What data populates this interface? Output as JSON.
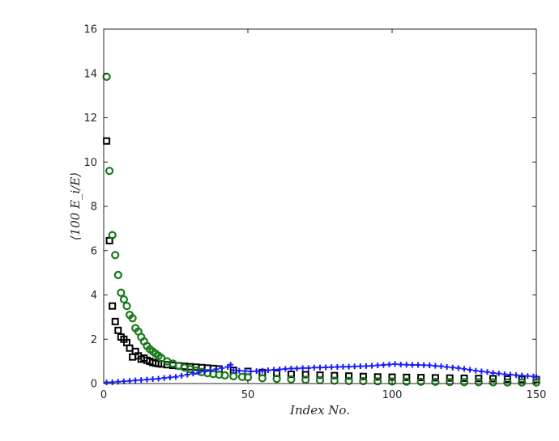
{
  "chart_data": {
    "type": "scatter",
    "title": "",
    "xlabel": "Index No.",
    "ylabel": "⟨100 E_i/E⟩",
    "xlim": [
      0,
      150
    ],
    "ylim": [
      0,
      16
    ],
    "xticks": [
      0,
      50,
      100,
      150
    ],
    "yticks": [
      0,
      2,
      4,
      6,
      8,
      10,
      12,
      14,
      16
    ],
    "grid": false,
    "legend": "none",
    "series": [
      {
        "marker": "square",
        "color": "#000000",
        "x": [
          1,
          2,
          3,
          4,
          5,
          6,
          7,
          8,
          9,
          10,
          11,
          12,
          13,
          14,
          15,
          16,
          17,
          18,
          19,
          20,
          22,
          24,
          26,
          28,
          30,
          32,
          34,
          36,
          38,
          40,
          45,
          50,
          55,
          60,
          65,
          70,
          75,
          80,
          85,
          90,
          95,
          100,
          105,
          110,
          115,
          120,
          125,
          130,
          135,
          140,
          145,
          150
        ],
        "y": [
          10.95,
          6.45,
          3.5,
          2.8,
          2.4,
          2.1,
          2.0,
          1.85,
          1.6,
          1.2,
          1.45,
          1.25,
          1.1,
          1.15,
          1.05,
          1.0,
          0.95,
          0.92,
          0.9,
          0.88,
          0.85,
          0.82,
          0.8,
          0.78,
          0.76,
          0.74,
          0.72,
          0.7,
          0.68,
          0.66,
          0.6,
          0.55,
          0.5,
          0.46,
          0.42,
          0.4,
          0.38,
          0.36,
          0.34,
          0.32,
          0.3,
          0.29,
          0.28,
          0.27,
          0.26,
          0.25,
          0.24,
          0.23,
          0.22,
          0.2,
          0.19,
          0.18
        ]
      },
      {
        "marker": "circle",
        "color": "#1a7a1a",
        "x": [
          1,
          2,
          3,
          4,
          5,
          6,
          7,
          8,
          9,
          10,
          11,
          12,
          13,
          14,
          15,
          16,
          17,
          18,
          19,
          20,
          22,
          24,
          26,
          28,
          30,
          32,
          34,
          36,
          38,
          40,
          42,
          45,
          48,
          50,
          55,
          60,
          65,
          70,
          75,
          80,
          85,
          90,
          95,
          100,
          105,
          110,
          115,
          120,
          125,
          130,
          135,
          140,
          145,
          150
        ],
        "y": [
          13.85,
          9.6,
          6.7,
          5.8,
          4.9,
          4.1,
          3.8,
          3.5,
          3.1,
          2.95,
          2.5,
          2.35,
          2.1,
          1.9,
          1.7,
          1.55,
          1.45,
          1.35,
          1.25,
          1.15,
          1.0,
          0.9,
          0.8,
          0.72,
          0.65,
          0.58,
          0.52,
          0.47,
          0.43,
          0.4,
          0.37,
          0.33,
          0.3,
          0.28,
          0.24,
          0.21,
          0.19,
          0.17,
          0.15,
          0.13,
          0.12,
          0.11,
          0.1,
          0.09,
          0.085,
          0.08,
          0.075,
          0.07,
          0.065,
          0.06,
          0.055,
          0.05,
          0.05,
          0.05
        ]
      },
      {
        "marker": "plus",
        "color": "#1a1aff",
        "x": [
          1,
          3,
          5,
          7,
          9,
          11,
          13,
          15,
          17,
          19,
          21,
          23,
          25,
          27,
          29,
          31,
          33,
          35,
          37,
          39,
          41,
          43,
          44,
          45,
          47,
          49,
          51,
          53,
          55,
          57,
          59,
          61,
          63,
          65,
          67,
          69,
          71,
          73,
          75,
          77,
          79,
          81,
          83,
          85,
          87,
          89,
          91,
          93,
          95,
          97,
          99,
          101,
          103,
          105,
          107,
          109,
          111,
          113,
          115,
          117,
          119,
          121,
          123,
          125,
          127,
          129,
          131,
          133,
          135,
          137,
          139,
          141,
          143,
          145,
          147,
          149,
          150
        ],
        "y": [
          0.05,
          0.06,
          0.08,
          0.1,
          0.12,
          0.14,
          0.16,
          0.18,
          0.2,
          0.22,
          0.25,
          0.28,
          0.3,
          0.35,
          0.4,
          0.45,
          0.5,
          0.55,
          0.6,
          0.65,
          0.7,
          0.75,
          0.85,
          0.6,
          0.58,
          0.56,
          0.55,
          0.56,
          0.58,
          0.6,
          0.62,
          0.64,
          0.66,
          0.68,
          0.68,
          0.7,
          0.7,
          0.72,
          0.72,
          0.73,
          0.74,
          0.75,
          0.76,
          0.76,
          0.77,
          0.78,
          0.79,
          0.8,
          0.82,
          0.84,
          0.86,
          0.88,
          0.86,
          0.85,
          0.84,
          0.84,
          0.83,
          0.82,
          0.8,
          0.78,
          0.75,
          0.72,
          0.7,
          0.66,
          0.62,
          0.58,
          0.55,
          0.52,
          0.48,
          0.45,
          0.42,
          0.4,
          0.38,
          0.36,
          0.34,
          0.32,
          0.3
        ]
      }
    ]
  }
}
